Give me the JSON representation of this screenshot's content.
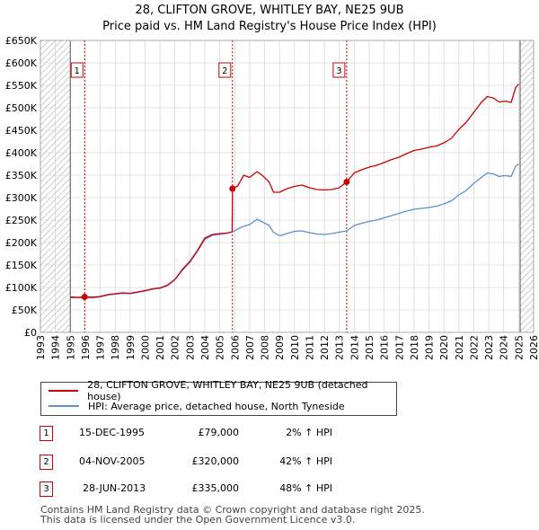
{
  "header": {
    "title_line1": "28, CLIFTON GROVE, WHITLEY BAY, NE25 9UB",
    "title_line2": "Price paid vs. HM Land Registry's House Price Index (HPI)"
  },
  "legend": {
    "property": "28, CLIFTON GROVE, WHITLEY BAY, NE25 9UB (detached house)",
    "hpi": "HPI: Average price, detached house, North Tyneside"
  },
  "transactions": [
    {
      "num": "1",
      "date": "15-DEC-1995",
      "price": "£79,000",
      "hpi": "2% ↑ HPI"
    },
    {
      "num": "2",
      "date": "04-NOV-2005",
      "price": "£320,000",
      "hpi": "42% ↑ HPI"
    },
    {
      "num": "3",
      "date": "28-JUN-2013",
      "price": "£335,000",
      "hpi": "48% ↑ HPI"
    }
  ],
  "footer": {
    "line1": "Contains HM Land Registry data © Crown copyright and database right 2025.",
    "line2": "This data is licensed under the Open Government Licence v3.0."
  },
  "colors": {
    "property": "#cc0000",
    "hpi": "#5a8fd0",
    "shade": "#dde6f3",
    "grid": "#cccccc"
  },
  "chart_data": {
    "type": "line",
    "ylabel": "",
    "xlabel": "",
    "xlim": [
      1993,
      2026
    ],
    "ylim": [
      0,
      650000
    ],
    "y_ticks": [
      0,
      50000,
      100000,
      150000,
      200000,
      250000,
      300000,
      350000,
      400000,
      450000,
      500000,
      550000,
      600000,
      650000
    ],
    "y_tick_labels": [
      "£0",
      "£50K",
      "£100K",
      "£150K",
      "£200K",
      "£250K",
      "£300K",
      "£350K",
      "£400K",
      "£450K",
      "£500K",
      "£550K",
      "£600K",
      "£650K"
    ],
    "x_ticks": [
      1993,
      1994,
      1995,
      1996,
      1997,
      1998,
      1999,
      2000,
      2001,
      2002,
      2003,
      2004,
      2005,
      2006,
      2007,
      2008,
      2009,
      2010,
      2011,
      2012,
      2013,
      2014,
      2015,
      2016,
      2017,
      2018,
      2019,
      2020,
      2021,
      2022,
      2023,
      2024,
      2025,
      2026
    ],
    "x_tick_labels": [
      "1993",
      "1994",
      "1995",
      "1996",
      "1997",
      "1998",
      "1999",
      "2000",
      "2001",
      "2002",
      "2003",
      "2004",
      "2005",
      "2006",
      "2007",
      "2008",
      "2009",
      "2010",
      "2011",
      "2012",
      "2013",
      "2014",
      "2015",
      "2016",
      "2017",
      "2018",
      "2019",
      "2020",
      "2021",
      "2022",
      "2023",
      "2024",
      "2025",
      "2026"
    ],
    "hatched_ranges": [
      [
        1993,
        1995.0
      ],
      [
        2025.1,
        2026
      ]
    ],
    "grid": true,
    "series": [
      {
        "name": "28, CLIFTON GROVE, WHITLEY BAY, NE25 9UB (detached house)",
        "points": [
          [
            1995.0,
            79000
          ],
          [
            1995.5,
            78000
          ],
          [
            1995.96,
            79000
          ],
          [
            1996.5,
            78500
          ],
          [
            1997.0,
            80000
          ],
          [
            1997.5,
            84000
          ],
          [
            1998.0,
            86000
          ],
          [
            1998.5,
            88000
          ],
          [
            1999.0,
            87000
          ],
          [
            1999.5,
            90000
          ],
          [
            2000.0,
            93000
          ],
          [
            2000.5,
            97000
          ],
          [
            2001.0,
            99000
          ],
          [
            2001.5,
            105000
          ],
          [
            2002.0,
            118000
          ],
          [
            2002.5,
            140000
          ],
          [
            2003.0,
            158000
          ],
          [
            2003.5,
            182000
          ],
          [
            2004.0,
            210000
          ],
          [
            2004.5,
            218000
          ],
          [
            2005.0,
            220000
          ],
          [
            2005.5,
            221000
          ],
          [
            2005.83,
            224000
          ],
          [
            2005.85,
            320000
          ],
          [
            2006.2,
            326000
          ],
          [
            2006.6,
            350000
          ],
          [
            2007.0,
            345000
          ],
          [
            2007.5,
            358000
          ],
          [
            2007.9,
            348000
          ],
          [
            2008.3,
            335000
          ],
          [
            2008.6,
            312000
          ],
          [
            2009.0,
            312000
          ],
          [
            2009.5,
            320000
          ],
          [
            2010.0,
            325000
          ],
          [
            2010.5,
            328000
          ],
          [
            2011.0,
            322000
          ],
          [
            2011.5,
            318000
          ],
          [
            2012.0,
            317000
          ],
          [
            2012.5,
            318000
          ],
          [
            2013.0,
            322000
          ],
          [
            2013.49,
            335000
          ],
          [
            2014.0,
            355000
          ],
          [
            2014.5,
            362000
          ],
          [
            2015.0,
            368000
          ],
          [
            2015.5,
            372000
          ],
          [
            2016.0,
            378000
          ],
          [
            2016.5,
            385000
          ],
          [
            2017.0,
            390000
          ],
          [
            2017.5,
            398000
          ],
          [
            2018.0,
            405000
          ],
          [
            2018.5,
            408000
          ],
          [
            2019.0,
            412000
          ],
          [
            2019.5,
            415000
          ],
          [
            2020.0,
            422000
          ],
          [
            2020.5,
            432000
          ],
          [
            2021.0,
            452000
          ],
          [
            2021.5,
            468000
          ],
          [
            2022.0,
            490000
          ],
          [
            2022.5,
            512000
          ],
          [
            2022.9,
            525000
          ],
          [
            2023.3,
            522000
          ],
          [
            2023.7,
            513000
          ],
          [
            2024.1,
            515000
          ],
          [
            2024.5,
            512000
          ],
          [
            2024.8,
            545000
          ],
          [
            2025.0,
            553000
          ]
        ]
      },
      {
        "name": "HPI: Average price, detached house, North Tyneside",
        "points": [
          [
            1995.0,
            77000
          ],
          [
            1995.96,
            77500
          ],
          [
            1996.5,
            77000
          ],
          [
            1997.0,
            79000
          ],
          [
            1997.5,
            83000
          ],
          [
            1998.0,
            85000
          ],
          [
            1998.5,
            87000
          ],
          [
            1999.0,
            86000
          ],
          [
            1999.5,
            89000
          ],
          [
            2000.0,
            92000
          ],
          [
            2000.5,
            96000
          ],
          [
            2001.0,
            98000
          ],
          [
            2001.5,
            104000
          ],
          [
            2002.0,
            117000
          ],
          [
            2002.5,
            138000
          ],
          [
            2003.0,
            156000
          ],
          [
            2003.5,
            180000
          ],
          [
            2004.0,
            207000
          ],
          [
            2004.5,
            216000
          ],
          [
            2005.0,
            218000
          ],
          [
            2005.5,
            221000
          ],
          [
            2005.85,
            224000
          ],
          [
            2006.5,
            235000
          ],
          [
            2007.0,
            240000
          ],
          [
            2007.5,
            252000
          ],
          [
            2007.9,
            245000
          ],
          [
            2008.3,
            238000
          ],
          [
            2008.6,
            223000
          ],
          [
            2009.0,
            215000
          ],
          [
            2009.5,
            220000
          ],
          [
            2010.0,
            225000
          ],
          [
            2010.5,
            226000
          ],
          [
            2011.0,
            222000
          ],
          [
            2011.5,
            219000
          ],
          [
            2012.0,
            218000
          ],
          [
            2012.5,
            220000
          ],
          [
            2013.0,
            223000
          ],
          [
            2013.49,
            226000
          ],
          [
            2014.0,
            238000
          ],
          [
            2014.5,
            243000
          ],
          [
            2015.0,
            247000
          ],
          [
            2015.5,
            250000
          ],
          [
            2016.0,
            255000
          ],
          [
            2016.5,
            260000
          ],
          [
            2017.0,
            265000
          ],
          [
            2017.5,
            270000
          ],
          [
            2018.0,
            274000
          ],
          [
            2018.5,
            276000
          ],
          [
            2019.0,
            278000
          ],
          [
            2019.5,
            281000
          ],
          [
            2020.0,
            286000
          ],
          [
            2020.5,
            293000
          ],
          [
            2021.0,
            306000
          ],
          [
            2021.5,
            316000
          ],
          [
            2022.0,
            332000
          ],
          [
            2022.5,
            345000
          ],
          [
            2022.9,
            355000
          ],
          [
            2023.3,
            353000
          ],
          [
            2023.7,
            347000
          ],
          [
            2024.1,
            349000
          ],
          [
            2024.5,
            347000
          ],
          [
            2024.8,
            370000
          ],
          [
            2025.0,
            375000
          ]
        ]
      }
    ],
    "markers": [
      {
        "label": "1",
        "x": 1995.96,
        "y": 79000
      },
      {
        "label": "2",
        "x": 2005.85,
        "y": 320000
      },
      {
        "label": "3",
        "x": 2013.49,
        "y": 335000
      }
    ]
  }
}
